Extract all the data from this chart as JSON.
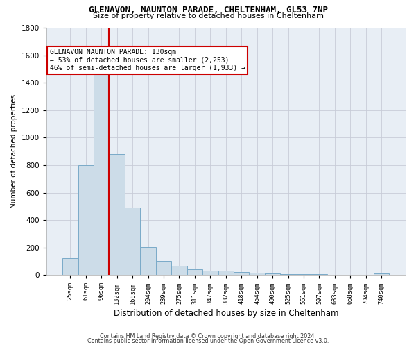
{
  "title1": "GLENAVON, NAUNTON PARADE, CHELTENHAM, GL53 7NP",
  "title2": "Size of property relative to detached houses in Cheltenham",
  "xlabel": "Distribution of detached houses by size in Cheltenham",
  "ylabel": "Number of detached properties",
  "footer1": "Contains HM Land Registry data © Crown copyright and database right 2024.",
  "footer2": "Contains public sector information licensed under the Open Government Licence v3.0.",
  "bar_color": "#ccdce8",
  "bar_edge_color": "#7aaac8",
  "grid_color": "#c8ccd8",
  "bg_color": "#e8eef5",
  "vline_color": "#cc0000",
  "annotation_text": "GLENAVON NAUNTON PARADE: 130sqm\n← 53% of detached houses are smaller (2,253)\n46% of semi-detached houses are larger (1,933) →",
  "categories": [
    "25sqm",
    "61sqm",
    "96sqm",
    "132sqm",
    "168sqm",
    "204sqm",
    "239sqm",
    "275sqm",
    "311sqm",
    "347sqm",
    "382sqm",
    "418sqm",
    "454sqm",
    "490sqm",
    "525sqm",
    "561sqm",
    "597sqm",
    "633sqm",
    "668sqm",
    "704sqm",
    "740sqm"
  ],
  "values": [
    125,
    800,
    1475,
    880,
    490,
    205,
    105,
    65,
    42,
    32,
    30,
    20,
    15,
    10,
    8,
    5,
    5,
    3,
    2,
    2,
    10
  ],
  "ylim": [
    0,
    1800
  ],
  "yticks": [
    0,
    200,
    400,
    600,
    800,
    1000,
    1200,
    1400,
    1600,
    1800
  ],
  "vline_index": 3
}
